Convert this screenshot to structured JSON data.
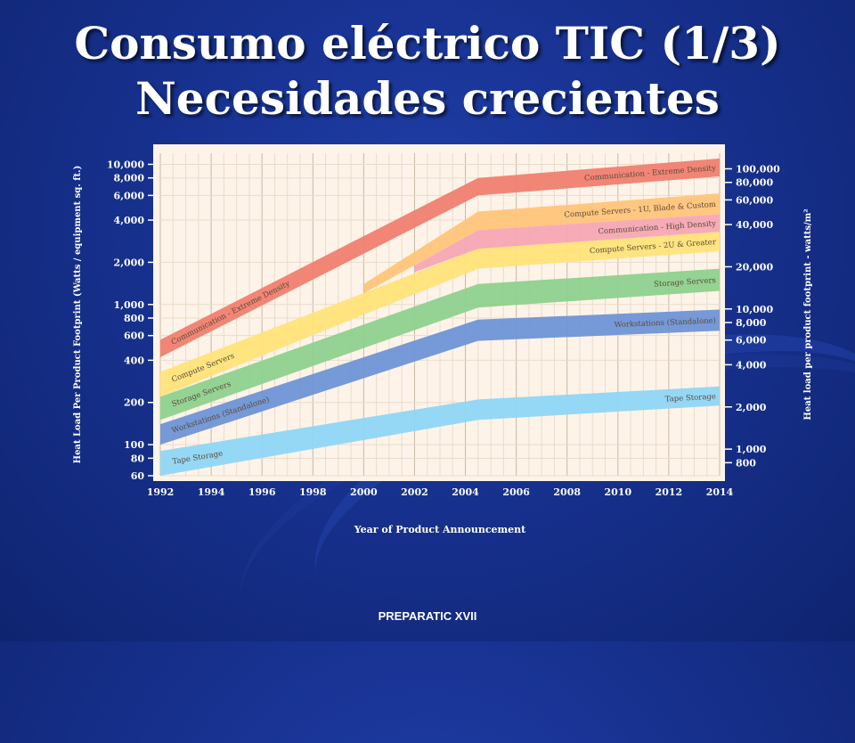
{
  "slide": {
    "title_line1": "Consumo eléctrico TIC (1/3)",
    "title_line2": "Necesidades crecientes",
    "footer": "PREPARATIC XVII"
  },
  "chart_data": {
    "type": "area",
    "xlabel": "Year of Product Announcement",
    "ylabel_left": "Heat Load Per Product Footprint (Watts / equipment sq. ft.)",
    "ylabel_right": "Heat load per product footprint - watts/m²",
    "x_ticks": [
      1992,
      1994,
      1996,
      1998,
      2000,
      2002,
      2004,
      2006,
      2008,
      2010,
      2012,
      2014
    ],
    "xlim": [
      1992,
      2014
    ],
    "y_scale": "log",
    "ylim": [
      60,
      12000
    ],
    "left_ticks": [
      "10,000",
      "8,000",
      "6,000",
      "4,000",
      "2,000",
      "1,000",
      "800",
      "600",
      "400",
      "200",
      "100",
      "80",
      "60"
    ],
    "left_tick_values": [
      10000,
      8000,
      6000,
      4000,
      2000,
      1000,
      800,
      600,
      400,
      200,
      100,
      80,
      60
    ],
    "right_ticks": [
      "100,000",
      "80,000",
      "60,000",
      "40,000",
      "20,000",
      "10,000",
      "8,000",
      "6,000",
      "4,000",
      "2,000",
      "1,000",
      "800"
    ],
    "right_tick_values": [
      100000,
      80000,
      60000,
      40000,
      20000,
      10000,
      8000,
      6000,
      4000,
      2000,
      1000,
      800
    ],
    "series": [
      {
        "name": "Tape Storage",
        "color": "#8fd6f5",
        "x": [
          1992,
          2004.5,
          2014
        ],
        "lower": [
          60,
          150,
          190
        ],
        "upper": [
          90,
          210,
          260
        ],
        "left_label": "Tape Storage",
        "right_label": "Tape Storage"
      },
      {
        "name": "Workstations (Standalone)",
        "color": "#6f93d6",
        "x": [
          1992,
          2004.5,
          2014
        ],
        "lower": [
          100,
          550,
          650
        ],
        "upper": [
          140,
          780,
          920
        ],
        "left_label": "Workstations (Standalone)",
        "right_label": "Workstations (Standalone)"
      },
      {
        "name": "Storage Servers",
        "color": "#8ed18e",
        "x": [
          1992,
          2004.5,
          2014
        ],
        "lower": [
          150,
          950,
          1250
        ],
        "upper": [
          220,
          1400,
          1800
        ],
        "left_label": "Storage Servers",
        "right_label": "Storage Servers"
      },
      {
        "name": "Compute Servers - 2U & Greater",
        "color": "#ffe37a",
        "x": [
          1992,
          2004.5,
          2014
        ],
        "lower": [
          220,
          1800,
          2400
        ],
        "upper": [
          330,
          2500,
          3300
        ],
        "left_label": "Compute Servers",
        "right_label": "Compute Servers - 2U & Greater"
      },
      {
        "name": "Communication - High Density",
        "color": "#f7a6b4",
        "x": [
          2002,
          2004.5,
          2014
        ],
        "lower": [
          1700,
          2500,
          3300
        ],
        "upper": [
          1900,
          3400,
          4400
        ],
        "left_label": "",
        "right_label": "Communication - High Density"
      },
      {
        "name": "Compute Servers - 1U, Blade & Custom",
        "color": "#ffc47a",
        "x": [
          2000,
          2004.5,
          2014
        ],
        "lower": [
          1200,
          3400,
          4400
        ],
        "upper": [
          1400,
          4600,
          6200
        ],
        "left_label": "",
        "right_label": "Compute Servers - 1U, Blade & Custom"
      },
      {
        "name": "Communication - Extreme Density",
        "color": "#f08070",
        "x": [
          1992,
          2004.5,
          2014
        ],
        "lower": [
          420,
          6000,
          8200
        ],
        "upper": [
          560,
          8000,
          11000
        ],
        "left_label": "Communication - Extreme Density",
        "right_label": "Communication - Extreme Density"
      }
    ]
  }
}
